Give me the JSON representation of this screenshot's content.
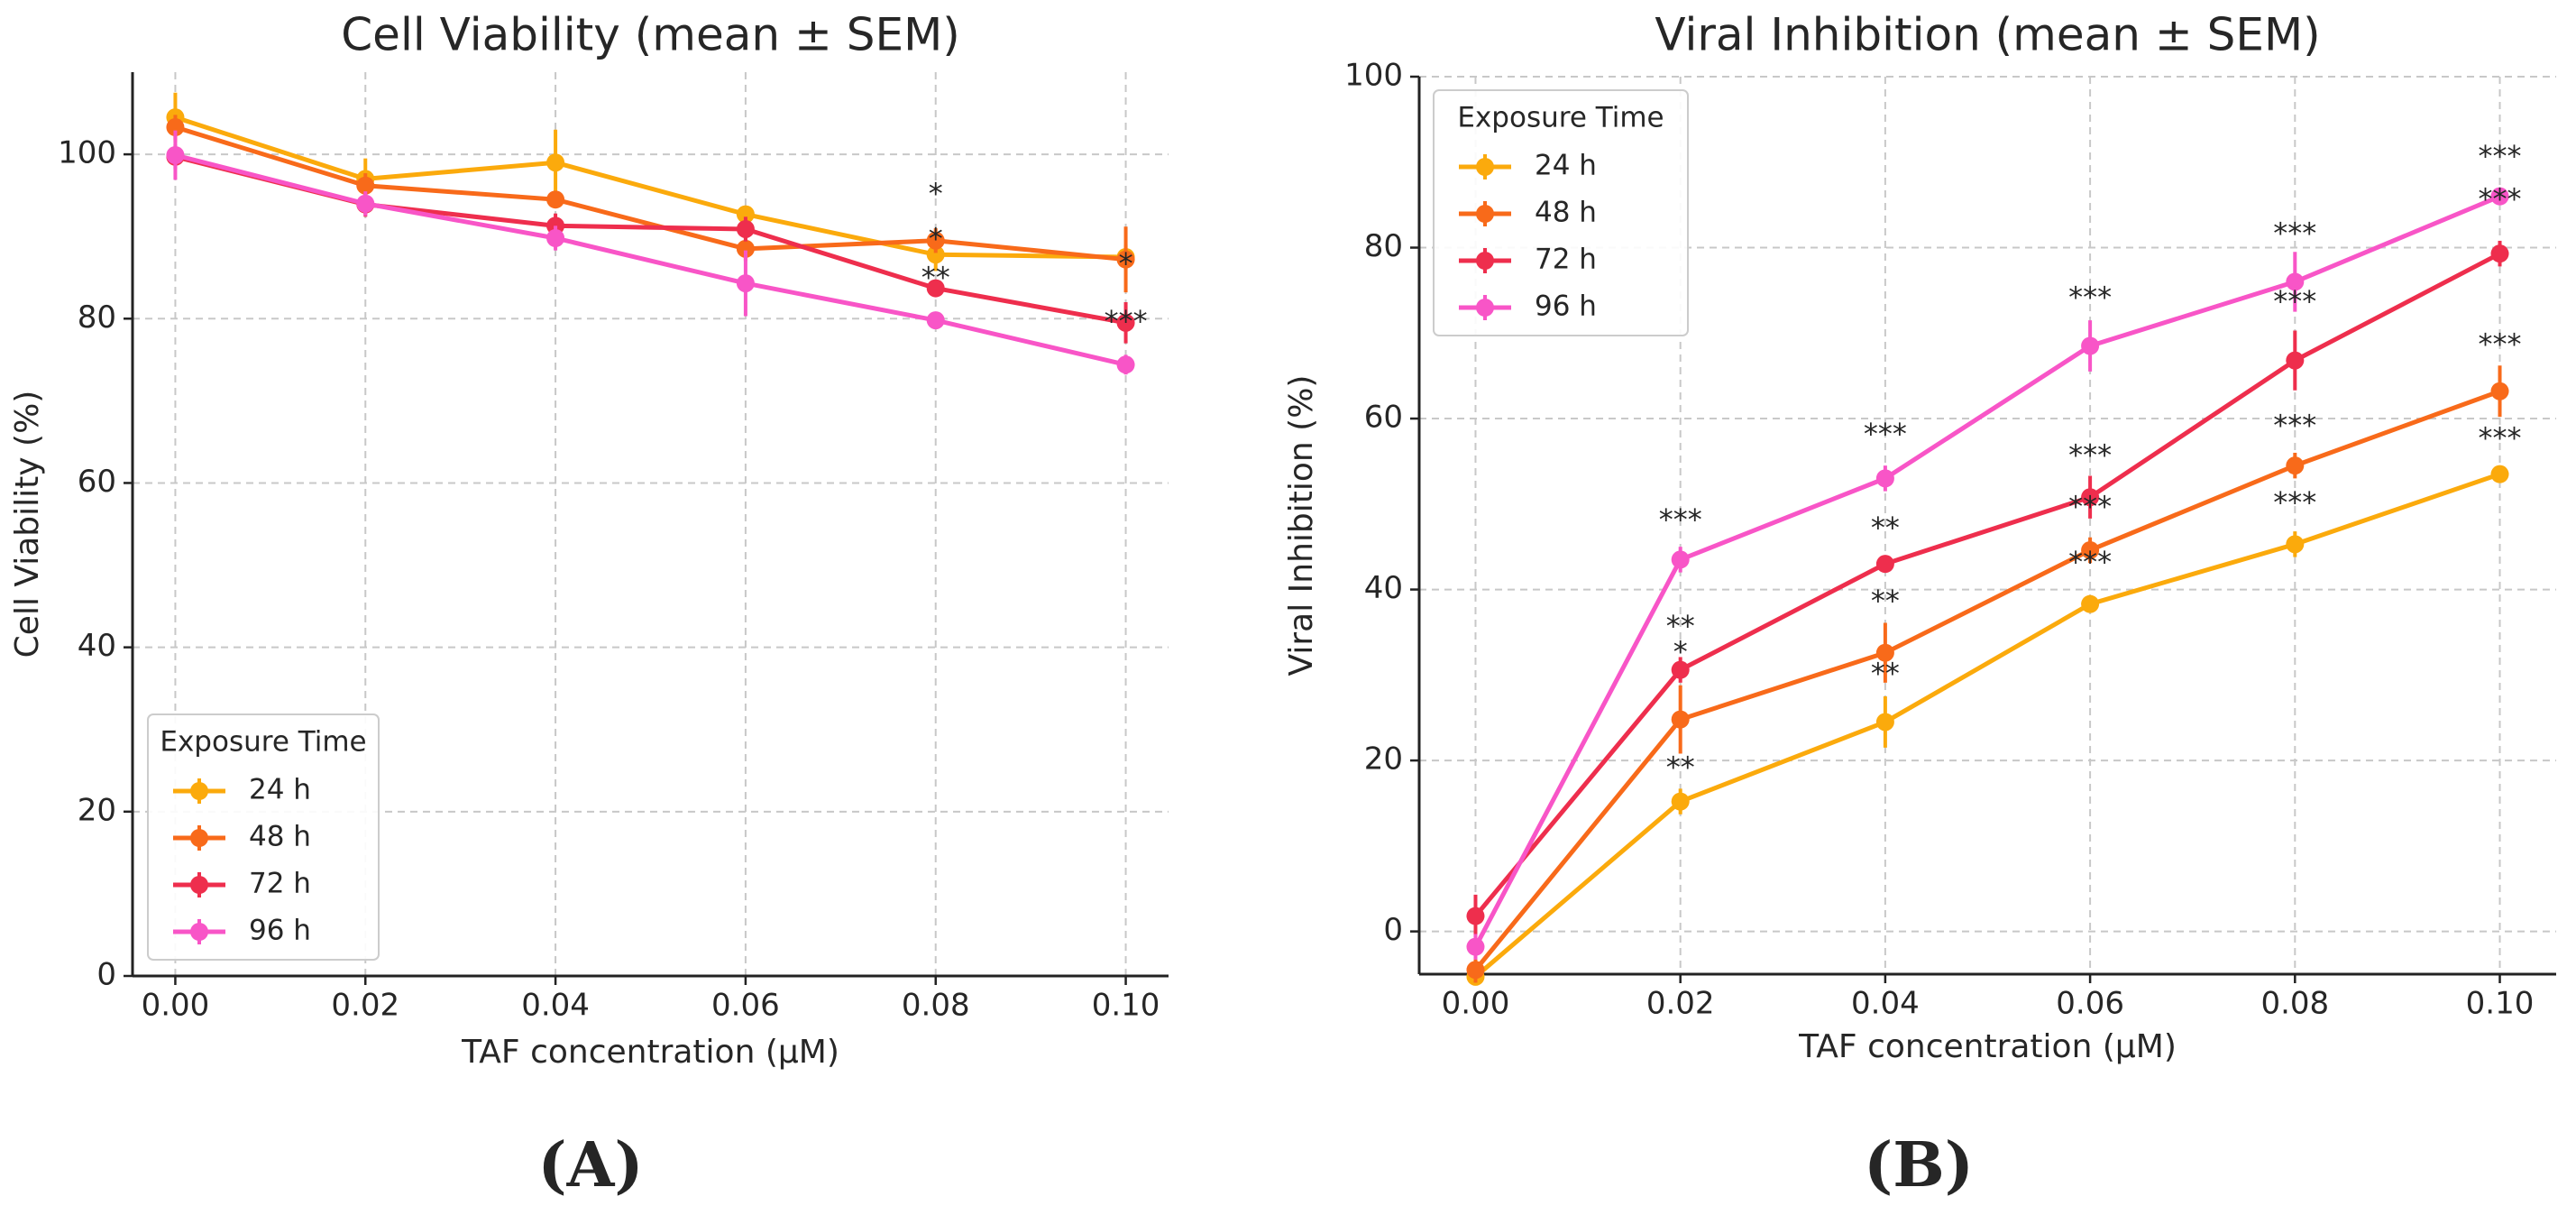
{
  "colors": {
    "24 h": "#FBAA0C",
    "48 h": "#F86A1A",
    "72 h": "#EE2E4D",
    "96 h": "#F855C7",
    "grid": "#c8c8c8",
    "axis": "#222222",
    "text": "#262626"
  },
  "panels": [
    {
      "label": "(A)",
      "chart_data": {
        "type": "line",
        "title": "Cell Viability (mean ± SEM)",
        "xlabel": "TAF concentration (µM)",
        "ylabel": "Cell Viability (%)",
        "x": [
          0.0,
          0.02,
          0.04,
          0.06,
          0.08,
          0.1
        ],
        "xtick_labels": [
          "0.00",
          "0.02",
          "0.04",
          "0.06",
          "0.08",
          "0.10"
        ],
        "xlim": [
          -0.0045,
          0.1045
        ],
        "ylim": [
          0,
          110
        ],
        "yticks": [
          0,
          20,
          40,
          60,
          80,
          100
        ],
        "grid": true,
        "legend_title": "Exposure Time",
        "legend_position": "lower-left",
        "series": [
          {
            "name": "24 h",
            "values": [
              104.5,
              97.0,
              99.0,
              92.7,
              87.8,
              87.5
            ],
            "sem": [
              3.0,
              2.5,
              4.0,
              1.0,
              2.0,
              1.5
            ]
          },
          {
            "name": "48 h",
            "values": [
              103.3,
              96.2,
              94.5,
              88.5,
              89.5,
              87.2
            ],
            "sem": [
              1.5,
              1.5,
              1.0,
              1.5,
              1.5,
              4.0
            ]
          },
          {
            "name": "72 h",
            "values": [
              99.7,
              93.9,
              91.3,
              90.9,
              83.7,
              79.5
            ],
            "sem": [
              1.5,
              1.5,
              1.5,
              1.5,
              1.0,
              2.5
            ]
          },
          {
            "name": "96 h",
            "values": [
              99.9,
              94.0,
              89.8,
              84.3,
              79.8,
              74.4
            ],
            "sem": [
              3.0,
              1.5,
              1.5,
              4.0,
              1.0,
              1.2
            ]
          }
        ],
        "annotations": [
          {
            "x": 0.08,
            "y": 95.0,
            "text": "*"
          },
          {
            "x": 0.08,
            "y": 89.5,
            "text": "*"
          },
          {
            "x": 0.08,
            "y": 84.8,
            "text": "**"
          },
          {
            "x": 0.1,
            "y": 86.5,
            "text": "*"
          },
          {
            "x": 0.1,
            "y": 79.5,
            "text": "***"
          }
        ]
      }
    },
    {
      "label": "(B)",
      "chart_data": {
        "type": "line",
        "title": "Viral Inhibition (mean ± SEM)",
        "xlabel": "TAF concentration (µM)",
        "ylabel": "Viral Inhibition (%)",
        "x": [
          0.0,
          0.02,
          0.04,
          0.06,
          0.08,
          0.1
        ],
        "xtick_labels": [
          "0.00",
          "0.02",
          "0.04",
          "0.06",
          "0.08",
          "0.10"
        ],
        "xlim": [
          -0.0055,
          0.1055
        ],
        "ylim": [
          -5,
          100
        ],
        "yticks": [
          0,
          20,
          40,
          60,
          80,
          100
        ],
        "grid": true,
        "legend_title": "Exposure Time",
        "legend_position": "upper-left",
        "series": [
          {
            "name": "24 h",
            "values": [
              -5.3,
              15.2,
              24.5,
              38.3,
              45.3,
              53.5
            ],
            "sem": [
              1.0,
              1.5,
              3.0,
              1.0,
              1.5,
              1.0
            ]
          },
          {
            "name": "48 h",
            "values": [
              -4.5,
              24.8,
              32.6,
              44.6,
              54.5,
              63.2
            ],
            "sem": [
              1.5,
              4.0,
              3.5,
              1.5,
              1.5,
              3.0
            ]
          },
          {
            "name": "72 h",
            "values": [
              1.8,
              30.6,
              43.0,
              50.8,
              66.8,
              79.3
            ],
            "sem": [
              2.5,
              1.5,
              1.0,
              2.5,
              3.5,
              1.5
            ]
          },
          {
            "name": "96 h",
            "values": [
              -1.8,
              43.5,
              53.0,
              68.5,
              76.0,
              86.0
            ],
            "sem": [
              1.5,
              1.5,
              1.5,
              3.0,
              3.5,
              1.0
            ]
          }
        ],
        "annotations": [
          {
            "x": 0.02,
            "y": 48.0,
            "text": "***"
          },
          {
            "x": 0.02,
            "y": 35.5,
            "text": "**"
          },
          {
            "x": 0.02,
            "y": 32.5,
            "text": "*"
          },
          {
            "x": 0.02,
            "y": 19.0,
            "text": "**"
          },
          {
            "x": 0.04,
            "y": 58.0,
            "text": "***"
          },
          {
            "x": 0.04,
            "y": 47.0,
            "text": "**"
          },
          {
            "x": 0.04,
            "y": 38.5,
            "text": "**"
          },
          {
            "x": 0.04,
            "y": 30.0,
            "text": "**"
          },
          {
            "x": 0.06,
            "y": 74.0,
            "text": "***"
          },
          {
            "x": 0.06,
            "y": 55.5,
            "text": "***"
          },
          {
            "x": 0.06,
            "y": 49.5,
            "text": "***"
          },
          {
            "x": 0.06,
            "y": 43.0,
            "text": "***"
          },
          {
            "x": 0.08,
            "y": 81.5,
            "text": "***"
          },
          {
            "x": 0.08,
            "y": 73.5,
            "text": "***"
          },
          {
            "x": 0.08,
            "y": 59.0,
            "text": "***"
          },
          {
            "x": 0.08,
            "y": 50.0,
            "text": "***"
          },
          {
            "x": 0.1,
            "y": 90.5,
            "text": "***"
          },
          {
            "x": 0.1,
            "y": 85.5,
            "text": "***"
          },
          {
            "x": 0.1,
            "y": 68.5,
            "text": "***"
          },
          {
            "x": 0.1,
            "y": 57.5,
            "text": "***"
          }
        ]
      }
    }
  ]
}
